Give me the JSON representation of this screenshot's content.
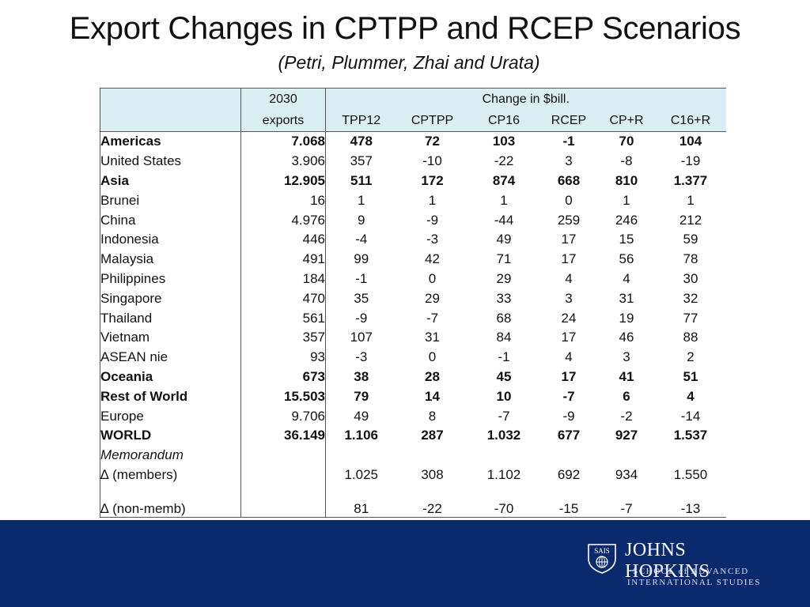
{
  "title": "Export Changes in CPTPP and RCEP Scenarios",
  "subtitle": "(Petri, Plummer, Zhai and Urata)",
  "table": {
    "header": {
      "exports_line1": "2030",
      "exports_line2": "exports",
      "group_label": "Change in $bill.",
      "columns": [
        "TPP12",
        "CPTPP",
        "CP16",
        "RCEP",
        "CP+R",
        "C16+R"
      ]
    },
    "rows": [
      {
        "label": "Americas",
        "exports": "7.068",
        "values": [
          "478",
          "72",
          "103",
          "-1",
          "70",
          "104"
        ],
        "bold": true,
        "indent": false
      },
      {
        "label": "United States",
        "exports": "3.906",
        "values": [
          "357",
          "-10",
          "-22",
          "3",
          "-8",
          "-19"
        ],
        "bold": false,
        "indent": true
      },
      {
        "label": "Asia",
        "exports": "12.905",
        "values": [
          "511",
          "172",
          "874",
          "668",
          "810",
          "1.377"
        ],
        "bold": true,
        "indent": false
      },
      {
        "label": "Brunei",
        "exports": "16",
        "values": [
          "1",
          "1",
          "1",
          "0",
          "1",
          "1"
        ],
        "bold": false,
        "indent": true
      },
      {
        "label": "China",
        "exports": "4.976",
        "values": [
          "9",
          "-9",
          "-44",
          "259",
          "246",
          "212"
        ],
        "bold": false,
        "indent": true
      },
      {
        "label": "Indonesia",
        "exports": "446",
        "values": [
          "-4",
          "-3",
          "49",
          "17",
          "15",
          "59"
        ],
        "bold": false,
        "indent": true
      },
      {
        "label": "Malaysia",
        "exports": "491",
        "values": [
          "99",
          "42",
          "71",
          "17",
          "56",
          "78"
        ],
        "bold": false,
        "indent": true
      },
      {
        "label": "Philippines",
        "exports": "184",
        "values": [
          "-1",
          "0",
          "29",
          "4",
          "4",
          "30"
        ],
        "bold": false,
        "indent": true
      },
      {
        "label": "Singapore",
        "exports": "470",
        "values": [
          "35",
          "29",
          "33",
          "3",
          "31",
          "32"
        ],
        "bold": false,
        "indent": true
      },
      {
        "label": "Thailand",
        "exports": "561",
        "values": [
          "-9",
          "-7",
          "68",
          "24",
          "19",
          "77"
        ],
        "bold": false,
        "indent": true
      },
      {
        "label": "Vietnam",
        "exports": "357",
        "values": [
          "107",
          "31",
          "84",
          "17",
          "46",
          "88"
        ],
        "bold": false,
        "indent": true
      },
      {
        "label": "ASEAN nie",
        "exports": "93",
        "values": [
          "-3",
          "0",
          "-1",
          "4",
          "3",
          "2"
        ],
        "bold": false,
        "indent": true
      },
      {
        "label": "Oceania",
        "exports": "673",
        "values": [
          "38",
          "28",
          "45",
          "17",
          "41",
          "51"
        ],
        "bold": true,
        "indent": false
      },
      {
        "label": "Rest of World",
        "exports": "15.503",
        "values": [
          "79",
          "14",
          "10",
          "-7",
          "6",
          "4"
        ],
        "bold": true,
        "indent": false
      },
      {
        "label": "Europe",
        "exports": "9.706",
        "values": [
          "49",
          "8",
          "-7",
          "-9",
          "-2",
          "-14"
        ],
        "bold": false,
        "indent": true
      },
      {
        "label": "WORLD",
        "exports": "36.149",
        "values": [
          "1.106",
          "287",
          "1.032",
          "677",
          "927",
          "1.537"
        ],
        "bold": true,
        "indent": false
      }
    ],
    "memorandum": {
      "label": "Memorandum",
      "members": {
        "label": "∆ (members)",
        "values": [
          "1.025",
          "308",
          "1.102",
          "692",
          "934",
          "1.550"
        ]
      },
      "non_members": {
        "label": "∆ (non-memb)",
        "values": [
          "81",
          "-22",
          "-70",
          "-15",
          "-7",
          "-13"
        ]
      }
    }
  },
  "footer": {
    "org_name": "JOHNS HOPKINS",
    "school_line1": "SCHOOL of ADVANCED",
    "school_line2": "INTERNATIONAL STUDIES",
    "seal_text": "SAIS",
    "background_color": "#0b2a6d"
  }
}
